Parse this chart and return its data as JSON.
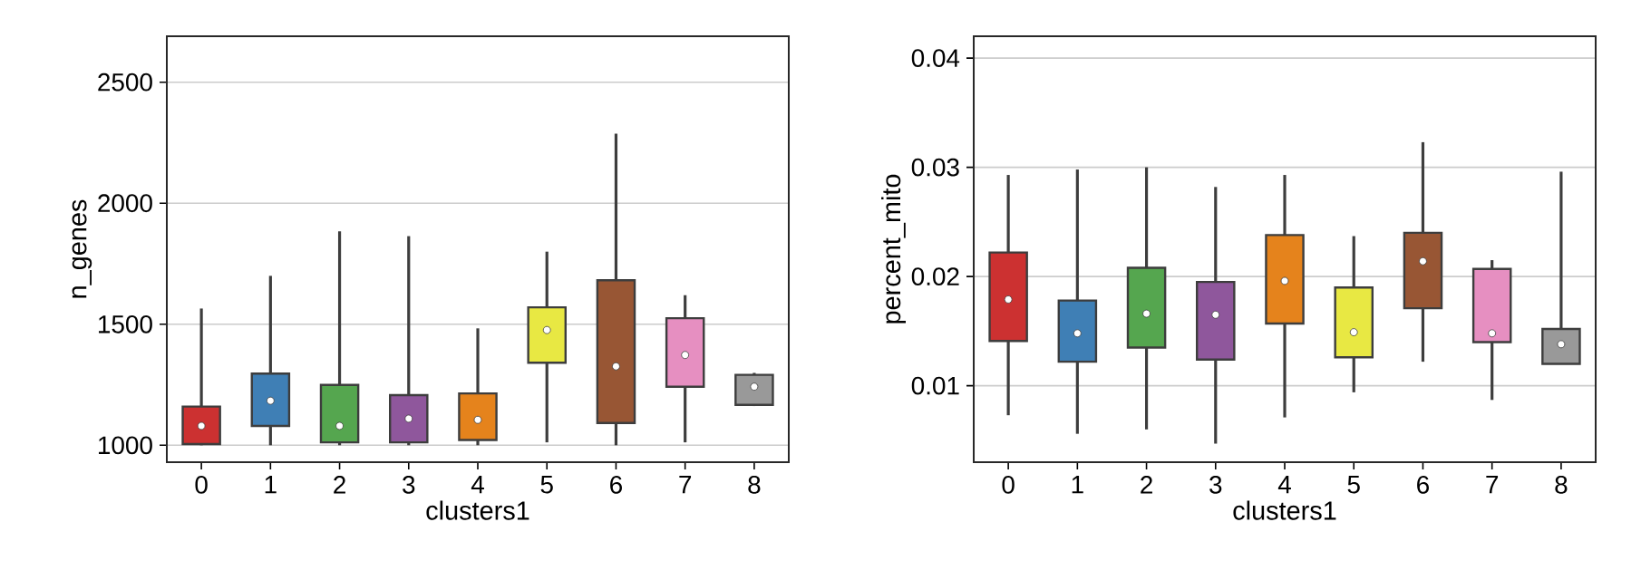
{
  "chart_data": [
    {
      "type": "box",
      "xlabel": "clusters1",
      "ylabel": "n_genes",
      "categories": [
        "0",
        "1",
        "2",
        "3",
        "4",
        "5",
        "6",
        "7",
        "8"
      ],
      "colors": [
        "#cc3131",
        "#3f7fb5",
        "#55a64f",
        "#8f579c",
        "#e5831c",
        "#e8e843",
        "#985634",
        "#e68fc1",
        "#999999"
      ],
      "boxes": [
        {
          "low": 1000,
          "q1": 1005,
          "median": 1080,
          "q3": 1160,
          "high": 1565
        },
        {
          "low": 1000,
          "q1": 1080,
          "median": 1184,
          "q3": 1296,
          "high": 1700
        },
        {
          "low": 1000,
          "q1": 1012,
          "median": 1080,
          "q3": 1249,
          "high": 1884
        },
        {
          "low": 1000,
          "q1": 1012,
          "median": 1110,
          "q3": 1207,
          "high": 1864
        },
        {
          "low": 1000,
          "q1": 1022,
          "median": 1105,
          "q3": 1214,
          "high": 1483
        },
        {
          "low": 1012,
          "q1": 1341,
          "median": 1476,
          "q3": 1570,
          "high": 1800
        },
        {
          "low": 1000,
          "q1": 1092,
          "median": 1326,
          "q3": 1682,
          "high": 2287
        },
        {
          "low": 1012,
          "q1": 1242,
          "median": 1373,
          "q3": 1525,
          "high": 1620
        },
        {
          "low": 1162,
          "q1": 1167,
          "median": 1242,
          "q3": 1291,
          "high": 1299
        }
      ],
      "ylim": [
        930,
        2690
      ],
      "yticks": [
        1000,
        1500,
        2000,
        2500
      ],
      "grid": "y"
    },
    {
      "type": "box",
      "xlabel": "clusters1",
      "ylabel": "percent_mito",
      "categories": [
        "0",
        "1",
        "2",
        "3",
        "4",
        "5",
        "6",
        "7",
        "8"
      ],
      "colors": [
        "#cc3131",
        "#3f7fb5",
        "#55a64f",
        "#8f579c",
        "#e5831c",
        "#e8e843",
        "#985634",
        "#e68fc1",
        "#999999"
      ],
      "boxes": [
        {
          "low": 0.0073,
          "q1": 0.0141,
          "median": 0.0179,
          "q3": 0.0222,
          "high": 0.0293
        },
        {
          "low": 0.0056,
          "q1": 0.0122,
          "median": 0.0148,
          "q3": 0.0178,
          "high": 0.0298
        },
        {
          "low": 0.006,
          "q1": 0.0135,
          "median": 0.0166,
          "q3": 0.0208,
          "high": 0.03
        },
        {
          "low": 0.0047,
          "q1": 0.0124,
          "median": 0.0165,
          "q3": 0.0195,
          "high": 0.0282
        },
        {
          "low": 0.0071,
          "q1": 0.0157,
          "median": 0.0196,
          "q3": 0.0238,
          "high": 0.0293
        },
        {
          "low": 0.0094,
          "q1": 0.0126,
          "median": 0.0149,
          "q3": 0.019,
          "high": 0.0237
        },
        {
          "low": 0.0122,
          "q1": 0.0171,
          "median": 0.0214,
          "q3": 0.024,
          "high": 0.0323
        },
        {
          "low": 0.0087,
          "q1": 0.014,
          "median": 0.0148,
          "q3": 0.0207,
          "high": 0.0215
        },
        {
          "low": 0.012,
          "q1": 0.012,
          "median": 0.0138,
          "q3": 0.0152,
          "high": 0.0296
        }
      ],
      "ylim": [
        0.003,
        0.042
      ],
      "yticks": [
        0.01,
        0.02,
        0.03,
        0.04
      ],
      "grid": "y"
    }
  ]
}
